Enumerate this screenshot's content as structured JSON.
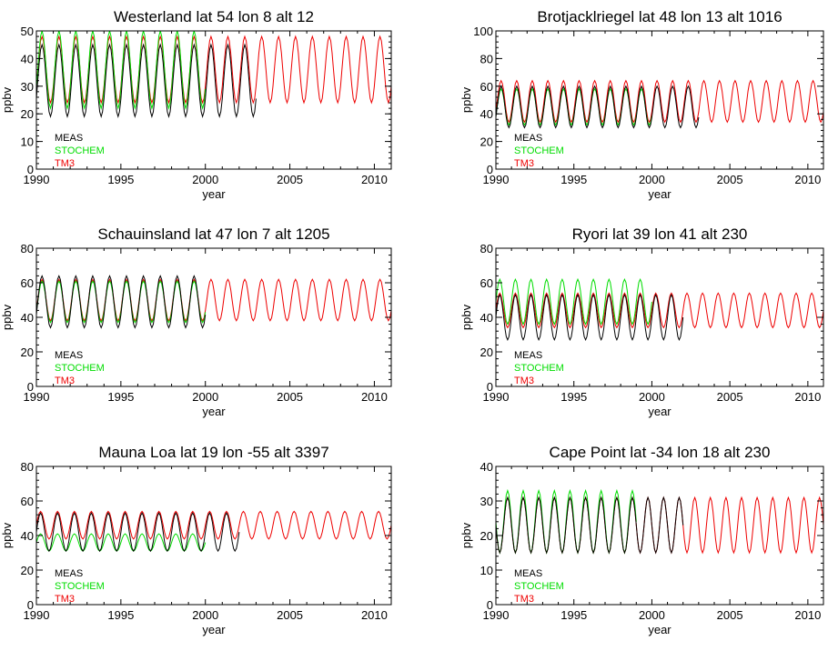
{
  "colors": {
    "MEAS": "#000000",
    "STOCHEM": "#00dd00",
    "TM3": "#ee0000"
  },
  "chart_data": [
    {
      "type": "line",
      "title": "Westerland lat 54 lon 8 alt 12",
      "xlabel": "year",
      "ylabel": "ppbv",
      "xlim": [
        1990,
        2011
      ],
      "ylim": [
        0,
        50
      ],
      "xticks": [
        1990,
        1995,
        2000,
        2005,
        2010
      ],
      "yticks": [
        0,
        10,
        20,
        30,
        40,
        50
      ],
      "legend": [
        "MEAS",
        "STOCHEM",
        "TM3"
      ],
      "legend_position": "lower-left",
      "series": [
        {
          "name": "MEAS",
          "x_range": [
            1990,
            2003
          ],
          "mean": 32,
          "amplitude": 13,
          "phase_months": 4
        },
        {
          "name": "STOCHEM",
          "x_range": [
            1990,
            2000
          ],
          "mean": 36,
          "amplitude": 14,
          "phase_months": 4
        },
        {
          "name": "TM3",
          "x_range": [
            1990,
            2011
          ],
          "mean": 36,
          "amplitude": 12,
          "phase_months": 4
        }
      ]
    },
    {
      "type": "line",
      "title": "Brotjacklriegel lat 48 lon 13 alt 1016",
      "xlabel": "year",
      "ylabel": "ppbv",
      "xlim": [
        1990,
        2011
      ],
      "ylim": [
        0,
        100
      ],
      "xticks": [
        1990,
        1995,
        2000,
        2005,
        2010
      ],
      "yticks": [
        0,
        20,
        40,
        60,
        80,
        100
      ],
      "legend": [
        "MEAS",
        "STOCHEM",
        "TM3"
      ],
      "legend_position": "lower-left",
      "series": [
        {
          "name": "MEAS",
          "x_range": [
            1990,
            2003
          ],
          "mean": 45,
          "amplitude": 15,
          "phase_months": 4
        },
        {
          "name": "STOCHEM",
          "x_range": [
            1990,
            2000
          ],
          "mean": 45,
          "amplitude": 13,
          "phase_months": 4
        },
        {
          "name": "TM3",
          "x_range": [
            1990,
            2011
          ],
          "mean": 49,
          "amplitude": 15,
          "phase_months": 4
        }
      ]
    },
    {
      "type": "line",
      "title": "Schauinsland lat 47 lon 7 alt 1205",
      "xlabel": "year",
      "ylabel": "ppbv",
      "xlim": [
        1990,
        2011
      ],
      "ylim": [
        0,
        80
      ],
      "xticks": [
        1990,
        1995,
        2000,
        2005,
        2010
      ],
      "yticks": [
        0,
        20,
        40,
        60,
        80
      ],
      "legend": [
        "MEAS",
        "STOCHEM",
        "TM3"
      ],
      "legend_position": "lower-left",
      "series": [
        {
          "name": "MEAS",
          "x_range": [
            1990,
            2000
          ],
          "mean": 49,
          "amplitude": 15,
          "phase_months": 4
        },
        {
          "name": "STOCHEM",
          "x_range": [
            1990,
            2000
          ],
          "mean": 49,
          "amplitude": 12,
          "phase_months": 4
        },
        {
          "name": "TM3",
          "x_range": [
            1990,
            2011
          ],
          "mean": 50,
          "amplitude": 12,
          "phase_months": 4
        }
      ]
    },
    {
      "type": "line",
      "title": "Ryori lat 39 lon 41 alt 230",
      "xlabel": "year",
      "ylabel": "ppbv",
      "xlim": [
        1990,
        2011
      ],
      "ylim": [
        0,
        80
      ],
      "xticks": [
        1990,
        1995,
        2000,
        2005,
        2010
      ],
      "yticks": [
        0,
        20,
        40,
        60,
        80
      ],
      "legend": [
        "MEAS",
        "STOCHEM",
        "TM3"
      ],
      "legend_position": "lower-left",
      "series": [
        {
          "name": "MEAS",
          "x_range": [
            1990,
            2002
          ],
          "mean": 40,
          "amplitude": 13,
          "phase_months": 3
        },
        {
          "name": "STOCHEM",
          "x_range": [
            1990,
            2000
          ],
          "mean": 49,
          "amplitude": 13,
          "phase_months": 3
        },
        {
          "name": "TM3",
          "x_range": [
            1990,
            2011
          ],
          "mean": 44,
          "amplitude": 10,
          "phase_months": 3
        }
      ]
    },
    {
      "type": "line",
      "title": "Mauna Loa lat 19 lon -55 alt 3397",
      "xlabel": "year",
      "ylabel": "ppbv",
      "xlim": [
        1990,
        2011
      ],
      "ylim": [
        0,
        80
      ],
      "xticks": [
        1990,
        1995,
        2000,
        2005,
        2010
      ],
      "yticks": [
        0,
        20,
        40,
        60,
        80
      ],
      "legend": [
        "MEAS",
        "STOCHEM",
        "TM3"
      ],
      "legend_position": "lower-left",
      "series": [
        {
          "name": "MEAS",
          "x_range": [
            1990,
            2002
          ],
          "mean": 42,
          "amplitude": 11,
          "phase_months": 3
        },
        {
          "name": "STOCHEM",
          "x_range": [
            1990,
            2000
          ],
          "mean": 36,
          "amplitude": 5,
          "phase_months": 3
        },
        {
          "name": "TM3",
          "x_range": [
            1990,
            2011
          ],
          "mean": 46,
          "amplitude": 8,
          "phase_months": 3
        }
      ]
    },
    {
      "type": "line",
      "title": "Cape Point lat -34 lon 18 alt 230",
      "xlabel": "year",
      "ylabel": "ppbv",
      "xlim": [
        1990,
        2011
      ],
      "ylim": [
        0,
        40
      ],
      "xticks": [
        1990,
        1995,
        2000,
        2005,
        2010
      ],
      "yticks": [
        0,
        10,
        20,
        30,
        40
      ],
      "legend": [
        "MEAS",
        "STOCHEM",
        "TM3"
      ],
      "legend_position": "lower-left",
      "series": [
        {
          "name": "MEAS",
          "x_range": [
            1990,
            2002
          ],
          "mean": 23,
          "amplitude": 8,
          "phase_months": 9
        },
        {
          "name": "STOCHEM",
          "x_range": [
            1990,
            1999
          ],
          "mean": 24,
          "amplitude": 9,
          "phase_months": 9
        },
        {
          "name": "TM3",
          "x_range": [
            1990,
            2011
          ],
          "mean": 23,
          "amplitude": 8,
          "phase_months": 9
        }
      ]
    }
  ]
}
